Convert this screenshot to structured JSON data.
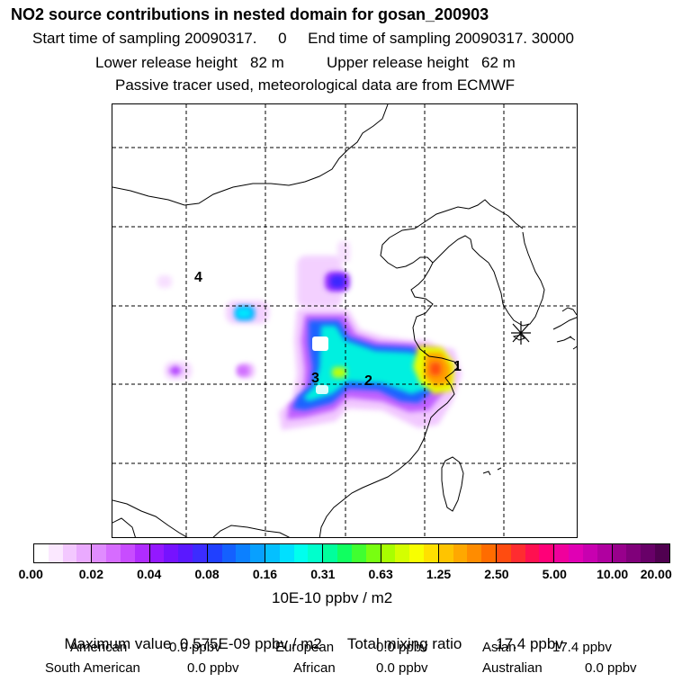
{
  "title": "NO2 source contributions in nested domain for gosan_200903",
  "subtitle_lines": [
    "Start time of sampling 20090317.     0     End time of sampling 20090317. 30000",
    "Lower release height   82 m          Upper release height   62 m",
    "Passive tracer used, meteorological data are from ECMWF"
  ],
  "chart_data": {
    "type": "heatmap",
    "title": "NO2 source contributions in nested domain for gosan_200903",
    "grid": true,
    "receptor_marker": "asterisk",
    "region_labels": [
      {
        "id": "1",
        "text": "1"
      },
      {
        "id": "2",
        "text": "2"
      },
      {
        "id": "3",
        "text": "3"
      },
      {
        "id": "4",
        "text": "4"
      }
    ],
    "colorbar": {
      "tick_labels": [
        "0.00",
        "0.02",
        "0.04",
        "0.08",
        "0.16",
        "0.31",
        "0.63",
        "1.25",
        "2.50",
        "5.00",
        "10.00",
        "20.00"
      ],
      "unit_label": "10E-10 ppbv / m2",
      "colors": [
        "#ffffff",
        "#fbe8ff",
        "#f3c8ff",
        "#eaaaff",
        "#e08cff",
        "#d66cff",
        "#c84cff",
        "#b02cff",
        "#9418ff",
        "#7612ff",
        "#5a18ff",
        "#3c2cff",
        "#2040ff",
        "#1460ff",
        "#0c80ff",
        "#08a0ff",
        "#04c0ff",
        "#00e0ff",
        "#00ffee",
        "#00ffcc",
        "#00ff9c",
        "#10ff60",
        "#40ff30",
        "#78ff10",
        "#a8ff00",
        "#d4ff00",
        "#f8ff00",
        "#ffe000",
        "#ffc400",
        "#ffa800",
        "#ff8c00",
        "#ff6c00",
        "#ff4c10",
        "#ff2c30",
        "#ff1050",
        "#ff0078",
        "#f0009c",
        "#e000b4",
        "#c800b0",
        "#b000a0",
        "#98008c",
        "#80007a",
        "#680068",
        "#500050"
      ]
    },
    "max_value_label": "Maximum value  0.575E-09 ppbv / m2",
    "total_mixing_ratio_label": "Total mixing ratio        17.4 ppbv",
    "regional_contributions": [
      {
        "name": "American",
        "value": "0.0 ppbv"
      },
      {
        "name": "European",
        "value": "0.0 ppbv"
      },
      {
        "name": "Asian",
        "value": "17.4 ppbv"
      },
      {
        "name": "South American",
        "value": "0.0 ppbv"
      },
      {
        "name": "African",
        "value": "0.0 ppbv"
      },
      {
        "name": "Australian",
        "value": "0.0 ppbv"
      }
    ]
  }
}
